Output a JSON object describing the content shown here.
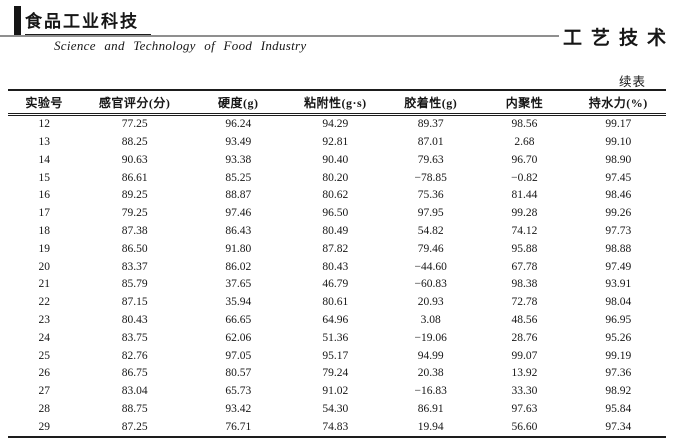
{
  "masthead": {
    "journal_cn": "食品工业科技",
    "journal_en": "Science and Technology of Food Industry",
    "section_title": "工艺技术"
  },
  "table": {
    "continued_label": "续表",
    "columns": [
      "实验号",
      "感官评分(分)",
      "硬度(g)",
      "粘附性(g·s)",
      "胶着性(g)",
      "内聚性",
      "持水力(%)"
    ],
    "rows": [
      [
        "12",
        "77.25",
        "96.24",
        "94.29",
        "89.37",
        "98.56",
        "99.17"
      ],
      [
        "13",
        "88.25",
        "93.49",
        "92.81",
        "87.01",
        "2.68",
        "99.10"
      ],
      [
        "14",
        "90.63",
        "93.38",
        "90.40",
        "79.63",
        "96.70",
        "98.90"
      ],
      [
        "15",
        "86.61",
        "85.25",
        "80.20",
        "−78.85",
        "−0.82",
        "97.45"
      ],
      [
        "16",
        "89.25",
        "88.87",
        "80.62",
        "75.36",
        "81.44",
        "98.46"
      ],
      [
        "17",
        "79.25",
        "97.46",
        "96.50",
        "97.95",
        "99.28",
        "99.26"
      ],
      [
        "18",
        "87.38",
        "86.43",
        "80.49",
        "54.82",
        "74.12",
        "97.73"
      ],
      [
        "19",
        "86.50",
        "91.80",
        "87.82",
        "79.46",
        "95.88",
        "98.88"
      ],
      [
        "20",
        "83.37",
        "86.02",
        "80.43",
        "−44.60",
        "67.78",
        "97.49"
      ],
      [
        "21",
        "85.79",
        "37.65",
        "46.79",
        "−60.83",
        "98.38",
        "93.91"
      ],
      [
        "22",
        "87.15",
        "35.94",
        "80.61",
        "20.93",
        "72.78",
        "98.04"
      ],
      [
        "23",
        "80.43",
        "66.65",
        "64.96",
        "3.08",
        "48.56",
        "96.95"
      ],
      [
        "24",
        "83.75",
        "62.06",
        "51.36",
        "−19.06",
        "28.76",
        "95.26"
      ],
      [
        "25",
        "82.76",
        "97.05",
        "95.17",
        "94.99",
        "99.07",
        "99.19"
      ],
      [
        "26",
        "86.75",
        "80.57",
        "79.24",
        "20.38",
        "13.92",
        "97.36"
      ],
      [
        "27",
        "83.04",
        "65.73",
        "91.02",
        "−16.83",
        "33.30",
        "98.92"
      ],
      [
        "28",
        "88.75",
        "93.42",
        "54.30",
        "86.91",
        "97.63",
        "95.84"
      ],
      [
        "29",
        "87.25",
        "76.71",
        "74.83",
        "19.94",
        "56.60",
        "97.34"
      ]
    ]
  }
}
